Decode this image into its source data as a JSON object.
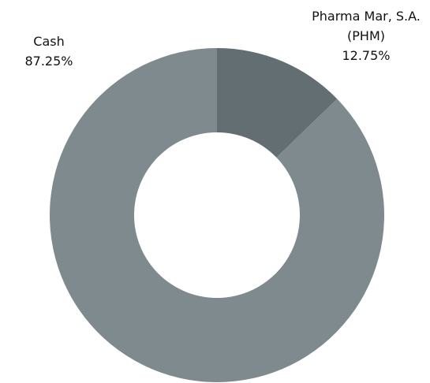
{
  "chart_data": {
    "type": "donut",
    "categories": [
      "Pharma Mar, S.A. (PHM)",
      "Cash"
    ],
    "values": [
      12.75,
      87.25
    ],
    "value_labels": [
      "12.75%",
      "87.25%"
    ],
    "colors": [
      "#636e72",
      "#7f8a8f"
    ]
  }
}
